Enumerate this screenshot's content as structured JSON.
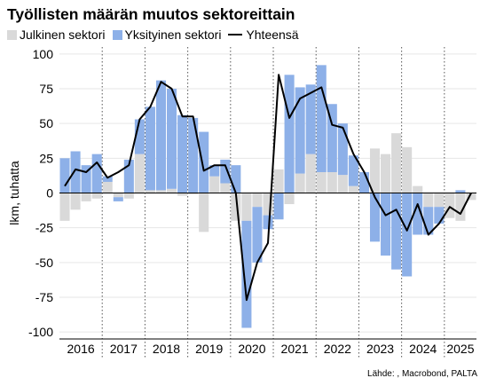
{
  "title": "Työllisten määrän muutos sektoreittain",
  "source": "Lähde: , Macrobond, PALTA",
  "colors": {
    "public": "#d9d9d9",
    "private": "#8db0e8",
    "total": "#000000"
  },
  "chart_data": {
    "type": "bar",
    "title": "Työllisten määrän muutos sektoreittain",
    "ylabel": "lkm, tuhatta",
    "ylim": [
      -105,
      105
    ],
    "yticks": [
      -100,
      -75,
      -50,
      -25,
      0,
      25,
      50,
      75,
      100
    ],
    "ytick_labels": [
      "-100",
      "-75",
      "-50",
      "-25",
      "0",
      "25",
      "50",
      "75",
      "100"
    ],
    "grid": true,
    "legend_position": "top-left",
    "x": [
      "2016Q1",
      "2016Q2",
      "2016Q3",
      "2016Q4",
      "2017Q1",
      "2017Q2",
      "2017Q3",
      "2017Q4",
      "2018Q1",
      "2018Q2",
      "2018Q3",
      "2018Q4",
      "2019Q1",
      "2019Q2",
      "2019Q3",
      "2019Q4",
      "2020Q1",
      "2020Q2",
      "2020Q3",
      "2020Q4",
      "2021Q1",
      "2021Q2",
      "2021Q3",
      "2021Q4",
      "2022Q1",
      "2022Q2",
      "2022Q3",
      "2022Q4",
      "2023Q1",
      "2023Q2",
      "2023Q3",
      "2023Q4",
      "2024Q1",
      "2024Q2",
      "2024Q3",
      "2024Q4",
      "2025Q1",
      "2025Q2",
      "2025Q3"
    ],
    "year_labels": [
      "2016",
      "2017",
      "2018",
      "2019",
      "2020",
      "2021",
      "2022",
      "2023",
      "2024",
      "2025"
    ],
    "series": [
      {
        "name": "Julkinen sektori",
        "type": "bar",
        "values": [
          -20,
          -12,
          -6,
          -4,
          8,
          -3,
          -4,
          28,
          2,
          2,
          3,
          -2,
          -1,
          -28,
          12,
          7,
          -20,
          -20,
          -10,
          -16,
          17,
          -8,
          14,
          28,
          15,
          15,
          13,
          5,
          0,
          32,
          28,
          43,
          33,
          5,
          -10,
          -10,
          -18,
          -20,
          -5
        ]
      },
      {
        "name": "Yksityinen sektori",
        "type": "bar",
        "values": [
          25,
          30,
          20,
          28,
          4,
          -3,
          24,
          25,
          60,
          79,
          72,
          56,
          54,
          44,
          8,
          17,
          20,
          -77,
          -40,
          -10,
          -19,
          85,
          62,
          50,
          77,
          49,
          37,
          22,
          15,
          -35,
          -45,
          -55,
          -60,
          -30,
          -20,
          -12,
          0,
          2,
          0
        ]
      },
      {
        "name": "Yhteensä",
        "type": "line",
        "values": [
          5,
          17,
          15,
          22,
          11,
          15,
          20,
          53,
          62,
          80,
          75,
          55,
          55,
          16,
          20,
          20,
          0,
          -77,
          -50,
          -36,
          85,
          54,
          68,
          72,
          76,
          49,
          47,
          28,
          15,
          -3,
          -16,
          -12,
          -27,
          -8,
          -30,
          -22,
          -10,
          -15,
          0
        ]
      }
    ]
  }
}
